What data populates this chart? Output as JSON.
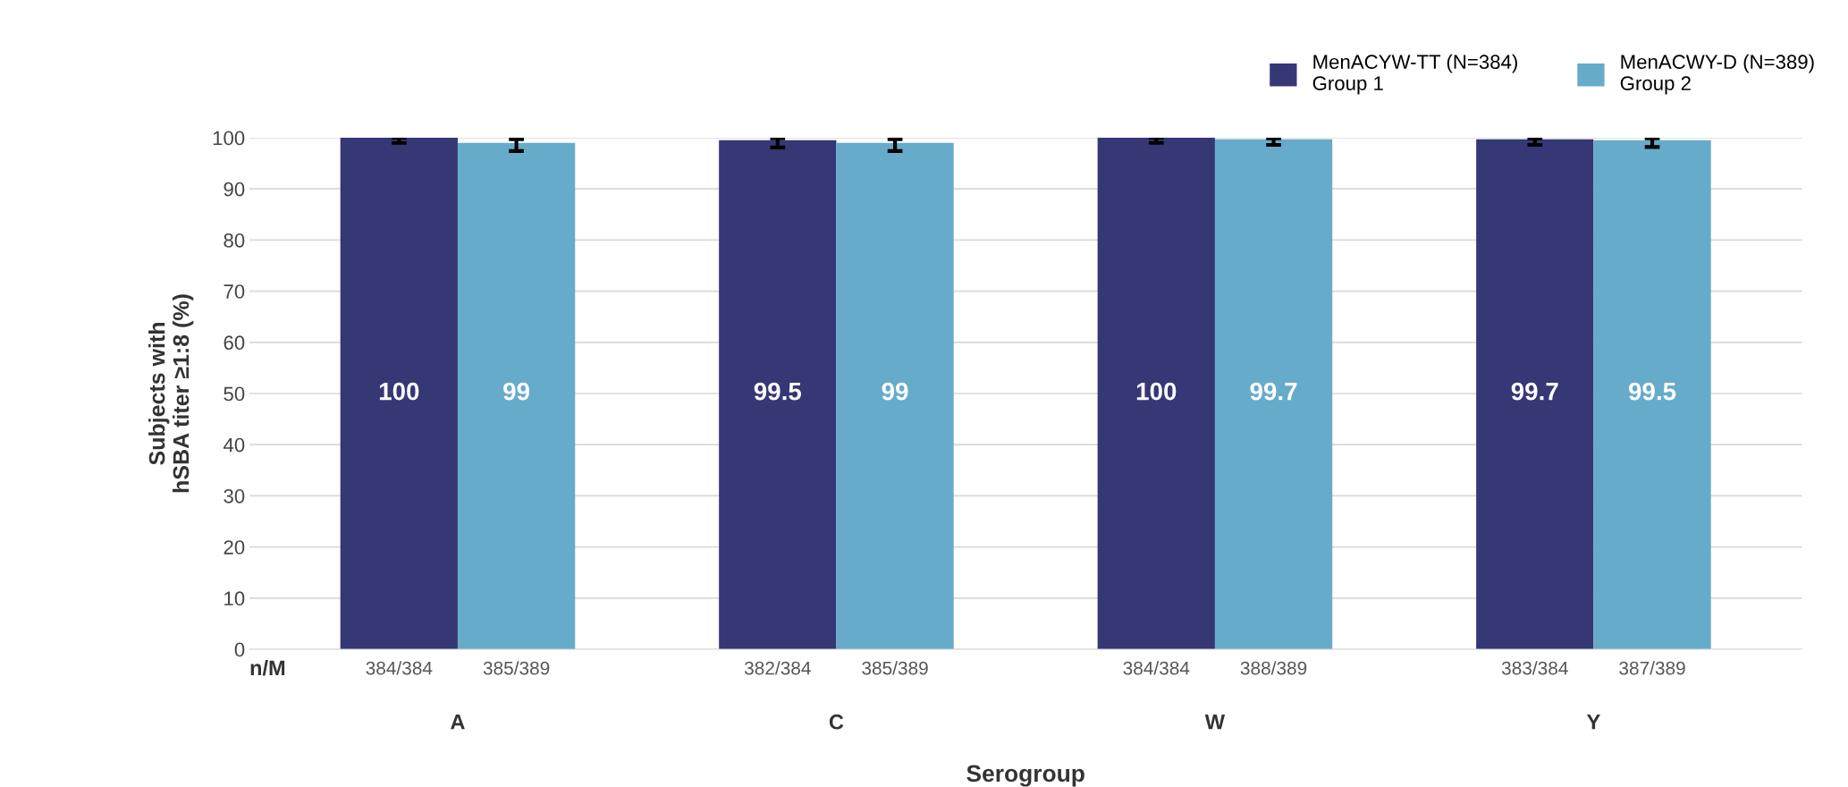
{
  "chart_data": {
    "type": "bar",
    "xlabel": "Serogroup",
    "ylabel": "Subjects with\nhSBA titer ≥1:8 (%)",
    "categories": [
      "A",
      "C",
      "W",
      "Y"
    ],
    "series": [
      {
        "name": "MenACYW-TT (N=384)\nGroup 1",
        "color": "#353874",
        "values": [
          100,
          99.5,
          100,
          99.7
        ],
        "errors": [
          [
            99.0,
            100
          ],
          [
            98.1,
            99.9
          ],
          [
            99.0,
            100
          ],
          [
            98.6,
            99.9
          ]
        ]
      },
      {
        "name": "MenACWY-D (N=389)\nGroup 2",
        "color": "#67abcb",
        "values": [
          99,
          99,
          99.7,
          99.5
        ],
        "errors": [
          [
            97.4,
            99.7
          ],
          [
            97.4,
            99.7
          ],
          [
            98.6,
            99.9
          ],
          [
            98.2,
            99.9
          ]
        ]
      }
    ],
    "value_labels": [
      [
        "100",
        "99.5",
        "100",
        "99.7"
      ],
      [
        "99",
        "99",
        "99.7",
        "99.5"
      ]
    ],
    "ylim": [
      0,
      100
    ],
    "yticks": [
      0,
      10,
      20,
      30,
      40,
      50,
      60,
      70,
      80,
      90,
      100
    ],
    "grid": "y",
    "legend": "top right",
    "annotations": [
      "n/M",
      "384/384",
      "385/389",
      "382/384",
      "385/389",
      "384/384",
      "388/389",
      "383/384",
      "387/389"
    ]
  }
}
